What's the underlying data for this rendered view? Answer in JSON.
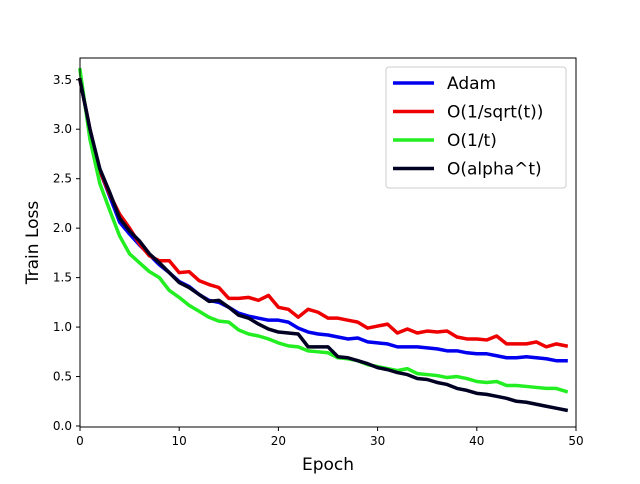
{
  "chart_data": {
    "type": "line",
    "xlabel": "Epoch",
    "ylabel": "Train Loss",
    "xlim": [
      0,
      50
    ],
    "ylim": [
      -0.01,
      3.72
    ],
    "xticks": [
      0,
      10,
      20,
      30,
      40,
      50
    ],
    "yticks": [
      0.0,
      0.5,
      1.0,
      1.5,
      2.0,
      2.5,
      3.0,
      3.5
    ],
    "grid": false,
    "legend_position": "top-right",
    "x": [
      0,
      1,
      2,
      3,
      4,
      5,
      6,
      7,
      8,
      9,
      10,
      11,
      12,
      13,
      14,
      15,
      16,
      17,
      18,
      19,
      20,
      21,
      22,
      23,
      24,
      25,
      26,
      27,
      28,
      29,
      30,
      31,
      32,
      33,
      34,
      35,
      36,
      37,
      38,
      39,
      40,
      41,
      42,
      43,
      44,
      45,
      46,
      47,
      48,
      49
    ],
    "series": [
      {
        "name": "Adam",
        "color": "#0000ee",
        "values": [
          3.5,
          3.0,
          2.58,
          2.32,
          2.06,
          1.94,
          1.83,
          1.73,
          1.63,
          1.55,
          1.46,
          1.41,
          1.33,
          1.27,
          1.25,
          1.2,
          1.14,
          1.11,
          1.09,
          1.07,
          1.07,
          1.05,
          0.99,
          0.95,
          0.93,
          0.92,
          0.9,
          0.88,
          0.89,
          0.85,
          0.84,
          0.83,
          0.8,
          0.8,
          0.8,
          0.79,
          0.78,
          0.76,
          0.76,
          0.74,
          0.73,
          0.73,
          0.71,
          0.69,
          0.69,
          0.7,
          0.69,
          0.68,
          0.66,
          0.66
        ]
      },
      {
        "name": "O(1/sqrt(t))",
        "color": "#ee0000",
        "values": [
          3.5,
          3.0,
          2.58,
          2.34,
          2.14,
          2.0,
          1.84,
          1.72,
          1.67,
          1.67,
          1.55,
          1.56,
          1.47,
          1.43,
          1.4,
          1.29,
          1.29,
          1.3,
          1.27,
          1.32,
          1.2,
          1.18,
          1.1,
          1.18,
          1.15,
          1.09,
          1.09,
          1.07,
          1.05,
          0.99,
          1.01,
          1.03,
          0.94,
          0.98,
          0.94,
          0.96,
          0.95,
          0.96,
          0.9,
          0.88,
          0.88,
          0.87,
          0.91,
          0.83,
          0.83,
          0.83,
          0.85,
          0.8,
          0.83,
          0.81
        ]
      },
      {
        "name": "O(1/t)",
        "color": "#22ee22",
        "values": [
          3.6,
          2.9,
          2.45,
          2.18,
          1.92,
          1.74,
          1.65,
          1.56,
          1.5,
          1.37,
          1.3,
          1.22,
          1.16,
          1.1,
          1.06,
          1.05,
          0.97,
          0.93,
          0.91,
          0.88,
          0.84,
          0.81,
          0.8,
          0.76,
          0.75,
          0.74,
          0.69,
          0.68,
          0.66,
          0.62,
          0.6,
          0.58,
          0.56,
          0.58,
          0.53,
          0.52,
          0.51,
          0.49,
          0.5,
          0.48,
          0.45,
          0.44,
          0.45,
          0.41,
          0.41,
          0.4,
          0.39,
          0.38,
          0.38,
          0.35
        ]
      },
      {
        "name": "O(alpha^t)",
        "color": "#000022",
        "values": [
          3.5,
          3.0,
          2.6,
          2.36,
          2.1,
          1.97,
          1.87,
          1.74,
          1.65,
          1.55,
          1.45,
          1.4,
          1.33,
          1.26,
          1.27,
          1.2,
          1.12,
          1.09,
          1.03,
          0.98,
          0.95,
          0.94,
          0.93,
          0.8,
          0.8,
          0.8,
          0.7,
          0.69,
          0.66,
          0.63,
          0.59,
          0.57,
          0.54,
          0.52,
          0.48,
          0.47,
          0.44,
          0.42,
          0.38,
          0.36,
          0.33,
          0.32,
          0.3,
          0.28,
          0.25,
          0.24,
          0.22,
          0.2,
          0.18,
          0.16
        ]
      }
    ]
  }
}
